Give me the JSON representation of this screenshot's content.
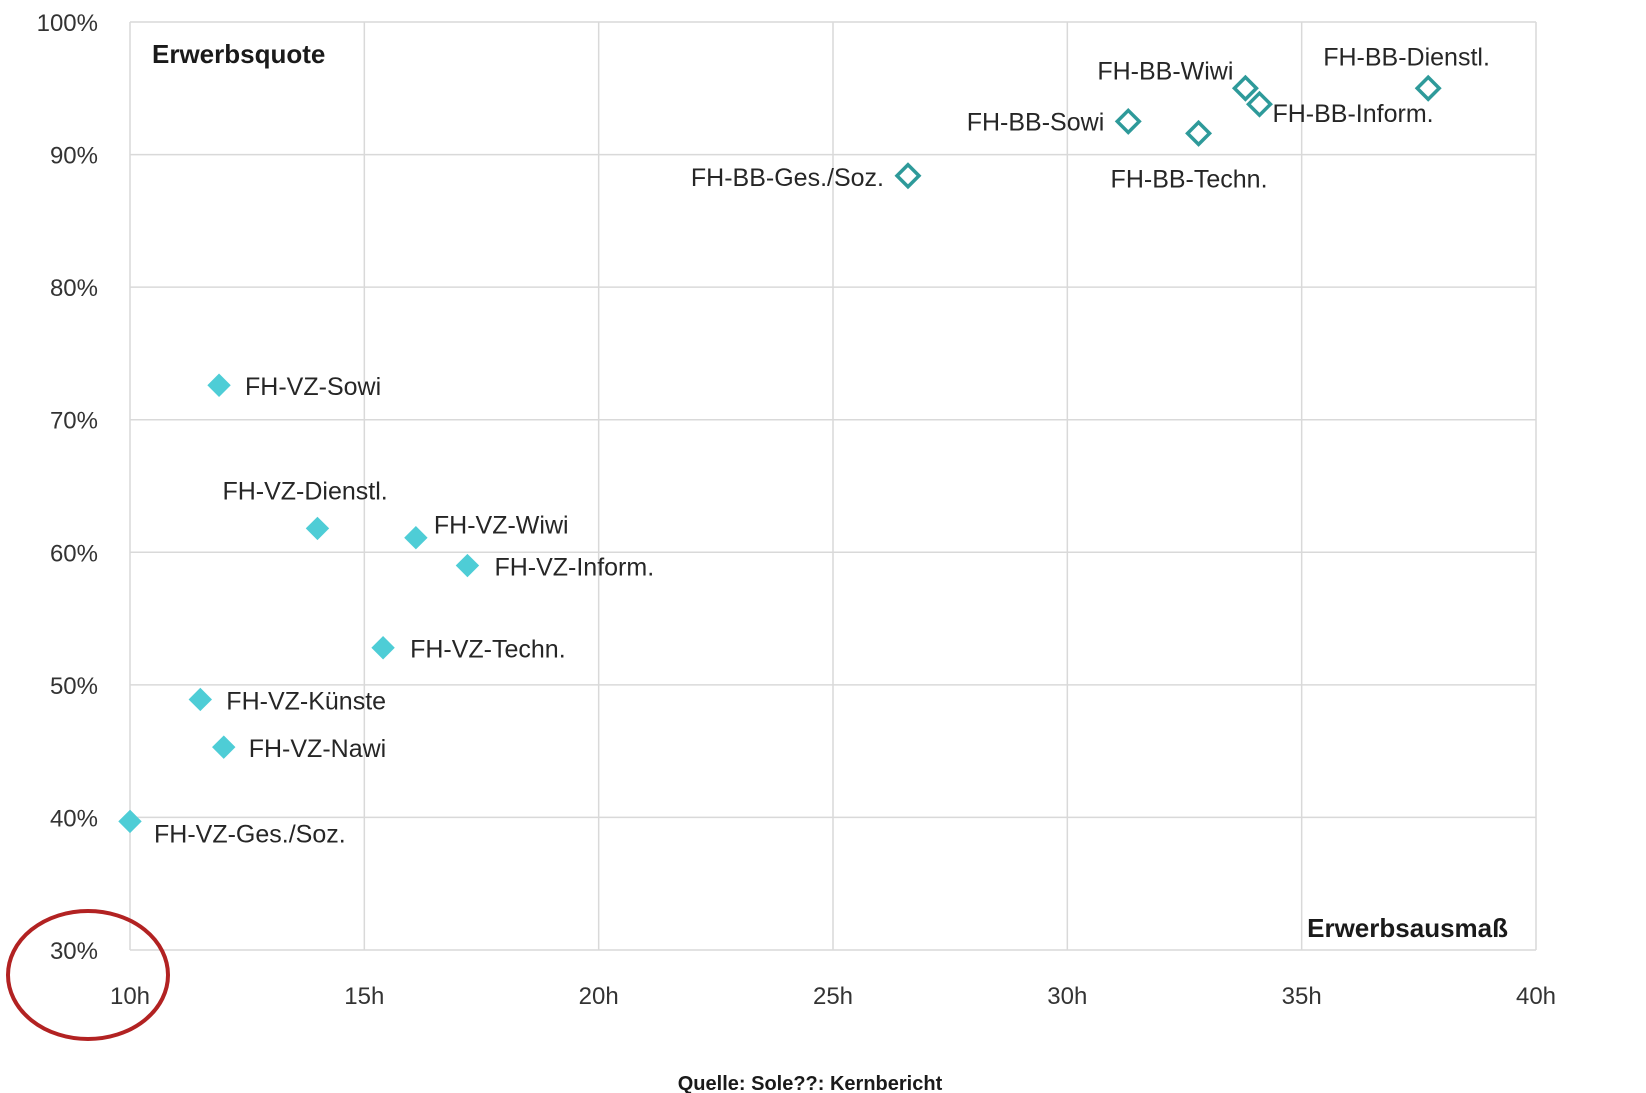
{
  "chart_data": {
    "type": "scatter",
    "xlabel": "Erwerbsausmaß",
    "ylabel": "Erwerbsquote",
    "xlim": [
      10,
      40
    ],
    "ylim": [
      30,
      100
    ],
    "x_ticks": [
      "10h",
      "15h",
      "20h",
      "25h",
      "30h",
      "35h",
      "40h"
    ],
    "y_ticks": [
      "30%",
      "40%",
      "50%",
      "60%",
      "70%",
      "80%",
      "90%",
      "100%"
    ],
    "grid": true,
    "source": "Quelle: Sole??: Kernbericht",
    "series": [
      {
        "style": "filled",
        "color": "#4ECDD6",
        "points": [
          {
            "label": "FH-VZ-Sowi",
            "x": 11.9,
            "y": 72.6
          },
          {
            "label": "FH-VZ-Dienstl.",
            "x": 14.0,
            "y": 61.8
          },
          {
            "label": "FH-VZ-Wiwi",
            "x": 16.1,
            "y": 61.1
          },
          {
            "label": "FH-VZ-Inform.",
            "x": 17.2,
            "y": 59.0
          },
          {
            "label": "FH-VZ-Techn.",
            "x": 15.4,
            "y": 52.8
          },
          {
            "label": "FH-VZ-Künste",
            "x": 11.5,
            "y": 48.9
          },
          {
            "label": "FH-VZ-Nawi",
            "x": 12.0,
            "y": 45.3
          },
          {
            "label": "FH-VZ-Ges./Soz.",
            "x": 10.0,
            "y": 39.7
          }
        ]
      },
      {
        "style": "hollow",
        "color": "#2E9A9A",
        "points": [
          {
            "label": "FH-BB-Wiwi",
            "x": 33.8,
            "y": 95.0
          },
          {
            "label": "FH-BB-Dienstl.",
            "x": 37.7,
            "y": 95.0
          },
          {
            "label": "FH-BB-Inform.",
            "x": 34.1,
            "y": 93.8
          },
          {
            "label": "FH-BB-Sowi",
            "x": 31.3,
            "y": 92.5
          },
          {
            "label": "FH-BB-Techn.",
            "x": 32.8,
            "y": 91.6
          },
          {
            "label": "FH-BB-Ges./Soz.",
            "x": 26.6,
            "y": 88.4
          }
        ]
      }
    ],
    "highlight_circle_color": "#B22222"
  }
}
